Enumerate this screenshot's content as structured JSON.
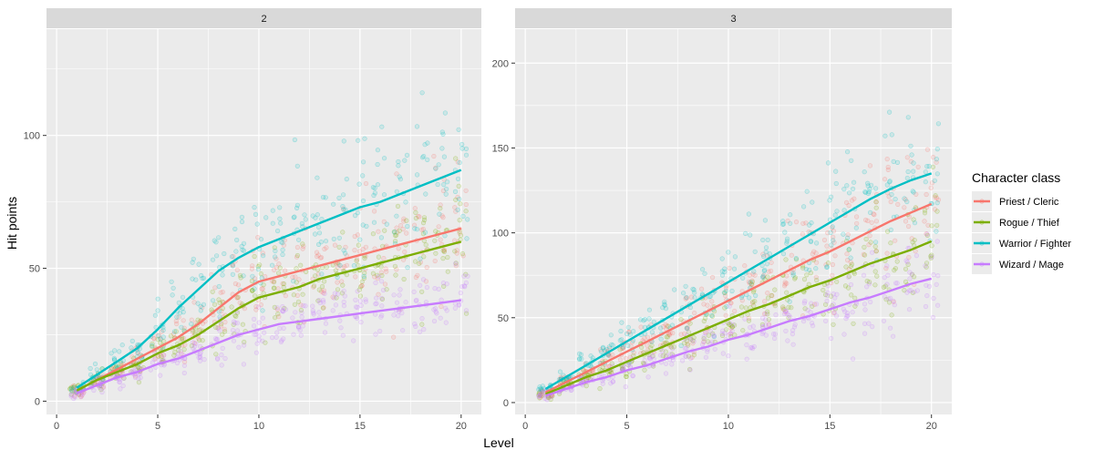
{
  "chart_data": {
    "type": "scatter",
    "xlabel": "Level",
    "ylabel": "Hit points",
    "legend": {
      "title": "Character class",
      "position": "right",
      "entries": [
        {
          "name": "Priest / Cleric",
          "color": "#F8766D"
        },
        {
          "name": "Rogue / Thief",
          "color": "#7CAE00"
        },
        {
          "name": "Warrior / Fighter",
          "color": "#00BFC4"
        },
        {
          "name": "Wizard / Mage",
          "color": "#C77CFF"
        }
      ]
    },
    "panels": [
      {
        "strip": "2",
        "xlim": [
          -0.5,
          21.0
        ],
        "ylim": [
          -5,
          140
        ],
        "x_ticks": [
          0,
          5,
          10,
          15,
          20
        ],
        "y_ticks": [
          0,
          50,
          100
        ],
        "grid": true,
        "trend": {
          "x": [
            1,
            2,
            3,
            4,
            5,
            6,
            7,
            8,
            9,
            10,
            11,
            12,
            13,
            14,
            15,
            16,
            17,
            18,
            19,
            20
          ],
          "series": [
            {
              "name": "Priest / Cleric",
              "values": [
                4,
                8,
                12,
                16,
                20,
                24,
                29,
                35,
                41,
                45,
                47,
                49,
                51,
                53,
                55,
                57,
                59,
                61,
                63,
                65
              ]
            },
            {
              "name": "Rogue / Thief",
              "values": [
                4,
                8,
                11,
                14,
                18,
                21,
                25,
                30,
                35,
                39,
                41,
                43,
                46,
                48,
                50,
                52,
                54,
                56,
                58,
                60
              ]
            },
            {
              "name": "Warrior / Fighter",
              "values": [
                5,
                10,
                15,
                20,
                27,
                35,
                42,
                49,
                54,
                58,
                61,
                64,
                67,
                70,
                73,
                75,
                78,
                81,
                84,
                87
              ]
            },
            {
              "name": "Wizard / Mage",
              "values": [
                3,
                6,
                9,
                11,
                14,
                16,
                19,
                22,
                25,
                27,
                29,
                30,
                31,
                32,
                33,
                34,
                35,
                36,
                37,
                38
              ]
            }
          ]
        }
      },
      {
        "strip": "3",
        "xlim": [
          -0.5,
          21.0
        ],
        "ylim": [
          -7,
          220
        ],
        "x_ticks": [
          0,
          5,
          10,
          15,
          20
        ],
        "y_ticks": [
          0,
          50,
          100,
          150,
          200
        ],
        "grid": true,
        "trend": {
          "x": [
            1,
            2,
            3,
            4,
            5,
            6,
            7,
            8,
            9,
            10,
            11,
            12,
            13,
            14,
            15,
            16,
            17,
            18,
            19,
            20
          ],
          "series": [
            {
              "name": "Priest / Cleric",
              "values": [
                6,
                12,
                18,
                24,
                30,
                36,
                42,
                48,
                54,
                60,
                66,
                72,
                78,
                84,
                89,
                95,
                101,
                107,
                112,
                117
              ]
            },
            {
              "name": "Rogue / Thief",
              "values": [
                5,
                10,
                15,
                19,
                24,
                29,
                34,
                39,
                44,
                49,
                54,
                58,
                63,
                68,
                72,
                77,
                82,
                86,
                90,
                95
              ]
            },
            {
              "name": "Warrior / Fighter",
              "values": [
                8,
                15,
                22,
                29,
                36,
                43,
                50,
                57,
                64,
                71,
                78,
                85,
                92,
                99,
                106,
                113,
                120,
                126,
                131,
                135
              ]
            },
            {
              "name": "Wizard / Mage",
              "values": [
                4,
                8,
                12,
                15,
                19,
                22,
                26,
                30,
                33,
                37,
                40,
                44,
                48,
                51,
                55,
                59,
                62,
                66,
                70,
                73
              ]
            }
          ]
        }
      }
    ]
  }
}
